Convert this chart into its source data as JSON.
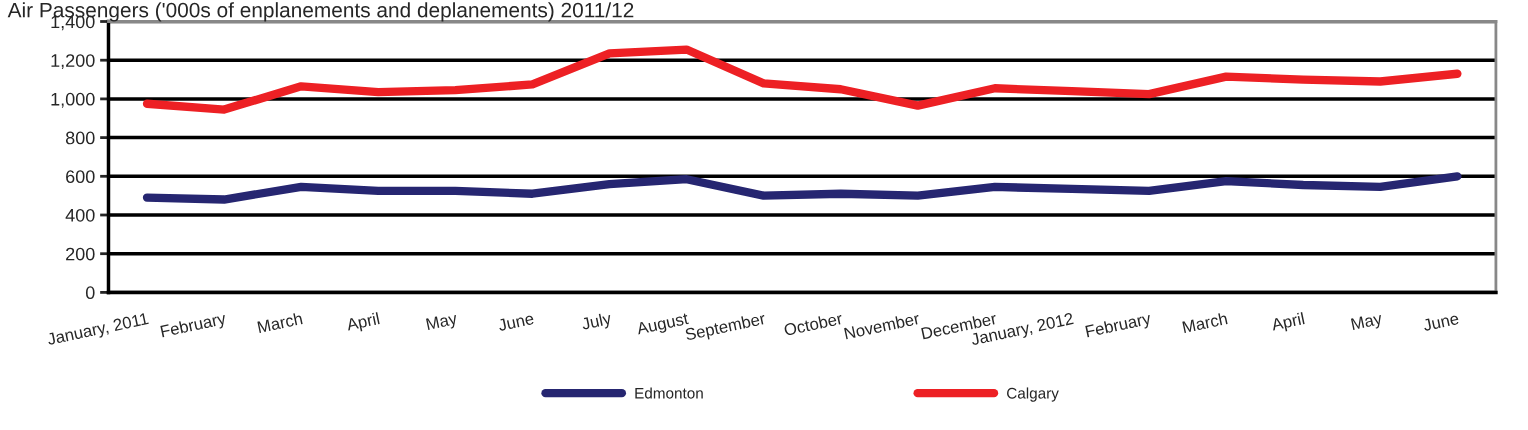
{
  "chart_data": {
    "type": "line",
    "title": "Air Passengers ('000s of enplanements and deplanements) 2011/12",
    "categories": [
      "January, 2011",
      "February",
      "March",
      "April",
      "May",
      "June",
      "July",
      "August",
      "September",
      "October",
      "November",
      "December",
      "January, 2012",
      "February",
      "March",
      "April",
      "May",
      "June"
    ],
    "series": [
      {
        "name": "Edmonton",
        "color": "#262671",
        "values": [
          490,
          480,
          545,
          525,
          525,
          510,
          560,
          585,
          500,
          510,
          500,
          545,
          535,
          525,
          575,
          555,
          545,
          600
        ]
      },
      {
        "name": "Calgary",
        "color": "#ed2024",
        "values": [
          975,
          945,
          1065,
          1035,
          1045,
          1075,
          1235,
          1255,
          1080,
          1050,
          965,
          1055,
          1040,
          1025,
          1115,
          1100,
          1090,
          1130
        ]
      }
    ],
    "ylim": [
      0,
      1400
    ],
    "yticks": [
      0,
      200,
      400,
      600,
      800,
      {
        "value": 1000,
        "label": "1,000"
      },
      {
        "value": 1200,
        "label": "1,200"
      },
      {
        "value": 1400,
        "label": "1,400"
      }
    ],
    "grid": "y",
    "legend": "bottom",
    "marker": "none",
    "line_style": "solid"
  }
}
